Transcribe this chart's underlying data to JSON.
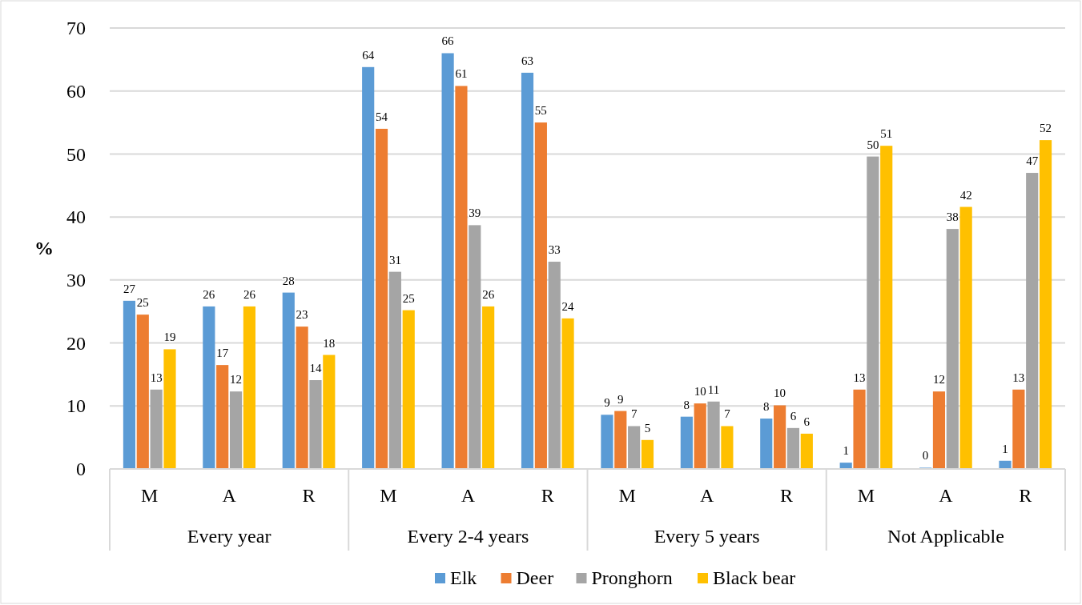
{
  "chart_data": {
    "type": "bar",
    "ylabel": "%",
    "categories": [
      "M",
      "A",
      "R",
      "M",
      "A",
      "R",
      "M",
      "A",
      "R",
      "M",
      "A",
      "R"
    ],
    "annotations": [
      "Every year",
      "Every 2-4 years",
      "Every 5 years",
      "Not Applicable"
    ],
    "series": [
      {
        "name": "Elk",
        "color": "#5b9bd5",
        "values": [
          26.7,
          25.8,
          28.0,
          63.8,
          66.0,
          62.9,
          8.6,
          8.3,
          8.0,
          1.0,
          0.2,
          1.3
        ],
        "value_labels": [
          "27",
          "26",
          "28",
          "64",
          "66",
          "63",
          "9",
          "8",
          "8",
          "1",
          "0",
          "1"
        ]
      },
      {
        "name": "Deer",
        "color": "#ed7d31",
        "values": [
          24.5,
          16.5,
          22.6,
          54.0,
          60.8,
          55.0,
          9.2,
          10.4,
          10.1,
          12.6,
          12.3,
          12.6
        ],
        "value_labels": [
          "25",
          "17",
          "23",
          "54",
          "61",
          "55",
          "9",
          "10",
          "10",
          "13",
          "12",
          "13"
        ]
      },
      {
        "name": "Pronghorn",
        "color": "#a5a5a5",
        "values": [
          12.6,
          12.3,
          14.1,
          31.3,
          38.7,
          32.9,
          6.8,
          10.7,
          6.5,
          49.6,
          38.1,
          47.0
        ],
        "value_labels": [
          "13",
          "12",
          "14",
          "31",
          "39",
          "33",
          "7",
          "11",
          "6",
          "50",
          "38",
          "47"
        ]
      },
      {
        "name": "Black bear",
        "color": "#ffc000",
        "values": [
          19.0,
          25.8,
          18.1,
          25.2,
          25.8,
          23.9,
          4.6,
          6.8,
          5.6,
          51.3,
          41.6,
          52.2
        ],
        "value_labels": [
          "19",
          "26",
          "18",
          "25",
          "26",
          "24",
          "5",
          "7",
          "6",
          "51",
          "42",
          "52"
        ]
      }
    ],
    "ylim": [
      0,
      70
    ],
    "yticks": [
      0,
      10,
      20,
      30,
      40,
      50,
      60,
      70
    ],
    "grid": "y",
    "legend": "bottom"
  }
}
